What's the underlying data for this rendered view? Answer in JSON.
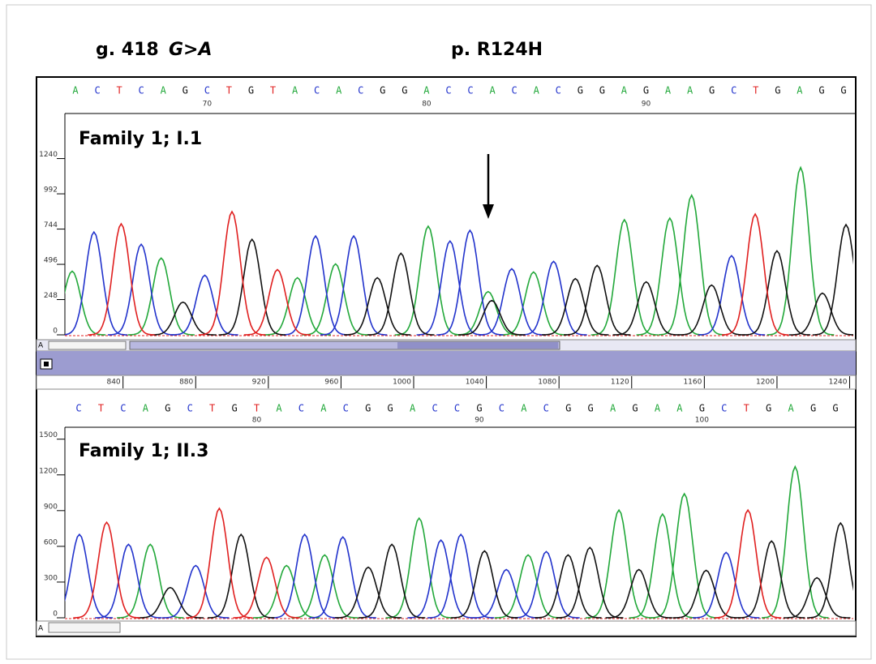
{
  "header": {
    "coding_prefix": "g. 418",
    "coding_change": "G>A",
    "protein": "p. R124H"
  },
  "toolbar_label": "A",
  "chart_data": [
    {
      "type": "chromatogram",
      "label": "Family 1; I.1",
      "bases": [
        "A",
        "C",
        "T",
        "C",
        "A",
        "G",
        "C",
        "T",
        "G",
        "T",
        "A",
        "C",
        "A",
        "C",
        "G",
        "G",
        "A",
        "C",
        "C",
        "A",
        "C",
        "A",
        "C",
        "G",
        "G",
        "A",
        "G",
        "A",
        "A",
        "G",
        "C",
        "T",
        "G",
        "A",
        "G",
        "G"
      ],
      "base_numbers": [
        null,
        null,
        null,
        null,
        null,
        null,
        70,
        null,
        null,
        null,
        null,
        null,
        null,
        null,
        null,
        null,
        80,
        null,
        null,
        null,
        null,
        null,
        null,
        null,
        null,
        null,
        90,
        null,
        null,
        null,
        null,
        null,
        null,
        null,
        null,
        null
      ],
      "base_colors": {
        "A": "#22a83a",
        "C": "#2233cc",
        "G": "#111111",
        "T": "#e02020"
      },
      "xlim": [
        808,
        1242
      ],
      "xticks": [
        840,
        880,
        920,
        960,
        1000,
        1040,
        1080,
        1120,
        1160,
        1200,
        1240
      ],
      "ylim": [
        0,
        1500
      ],
      "yticks": [
        0,
        248,
        496,
        744,
        992,
        1240
      ],
      "series": [
        {
          "color": "#22a83a",
          "x": [
            812,
            861,
            936,
            957,
            1008,
            1041,
            1066,
            1116,
            1141,
            1153,
            1213
          ],
          "values": [
            448,
            540,
            402,
            499,
            764,
            304,
            442,
            810,
            821,
            982,
            1177
          ]
        },
        {
          "color": "#2233cc",
          "x": [
            824,
            850,
            885,
            946,
            967,
            1020,
            1031,
            1054,
            1077,
            1175
          ],
          "values": [
            723,
            637,
            419,
            695,
            695,
            660,
            735,
            465,
            517,
            557
          ]
        },
        {
          "color": "#111111",
          "x": [
            873,
            911,
            980,
            993,
            1043,
            1089,
            1101,
            1128,
            1164,
            1200,
            1225,
            1238
          ],
          "values": [
            230,
            672,
            402,
            574,
            241,
            396,
            488,
            373,
            350,
            591,
            293,
            775
          ]
        },
        {
          "color": "#e02020",
          "x": [
            839,
            900,
            925,
            1188
          ],
          "values": [
            781,
            867,
            459,
            850
          ]
        }
      ]
    },
    {
      "type": "chromatogram",
      "label": "Family 1; II.3",
      "bases": [
        "C",
        "T",
        "C",
        "A",
        "G",
        "C",
        "T",
        "G",
        "T",
        "A",
        "C",
        "A",
        "C",
        "G",
        "G",
        "A",
        "C",
        "C",
        "G",
        "C",
        "A",
        "C",
        "G",
        "G",
        "A",
        "G",
        "A",
        "A",
        "G",
        "C",
        "T",
        "G",
        "A",
        "G",
        "G"
      ],
      "base_numbers": [
        null,
        null,
        null,
        null,
        null,
        null,
        null,
        null,
        80,
        null,
        null,
        null,
        null,
        null,
        null,
        null,
        null,
        null,
        90,
        null,
        null,
        null,
        null,
        null,
        null,
        null,
        null,
        null,
        100,
        null,
        null,
        null,
        null,
        null,
        null
      ],
      "base_colors": {
        "A": "#22a83a",
        "C": "#2233cc",
        "G": "#111111",
        "T": "#e02020"
      },
      "xlim": [
        808,
        1242
      ],
      "ylim": [
        0,
        1600
      ],
      "yticks": [
        0,
        300,
        600,
        900,
        1200,
        1500
      ],
      "series": [
        {
          "color": "#22a83a",
          "x": [
            855,
            930,
            951,
            1003,
            1063,
            1113,
            1137,
            1149,
            1210
          ],
          "values": [
            617,
            439,
            528,
            837,
            528,
            905,
            871,
            1042,
            1269
          ]
        },
        {
          "color": "#2233cc",
          "x": [
            816,
            843,
            880,
            940,
            961,
            1015,
            1026,
            1051,
            1073,
            1172
          ],
          "values": [
            700,
            617,
            439,
            700,
            679,
            652,
            700,
            405,
            556,
            549
          ]
        },
        {
          "color": "#111111",
          "x": [
            866,
            905,
            975,
            988,
            1039,
            1085,
            1097,
            1124,
            1161,
            1197,
            1222,
            1235
          ],
          "values": [
            254,
            700,
            425,
            617,
            562,
            528,
            590,
            405,
            398,
            645,
            336,
            796
          ]
        },
        {
          "color": "#e02020",
          "x": [
            831,
            893,
            919,
            1184
          ],
          "values": [
            802,
            919,
            508,
            905
          ]
        }
      ]
    }
  ]
}
